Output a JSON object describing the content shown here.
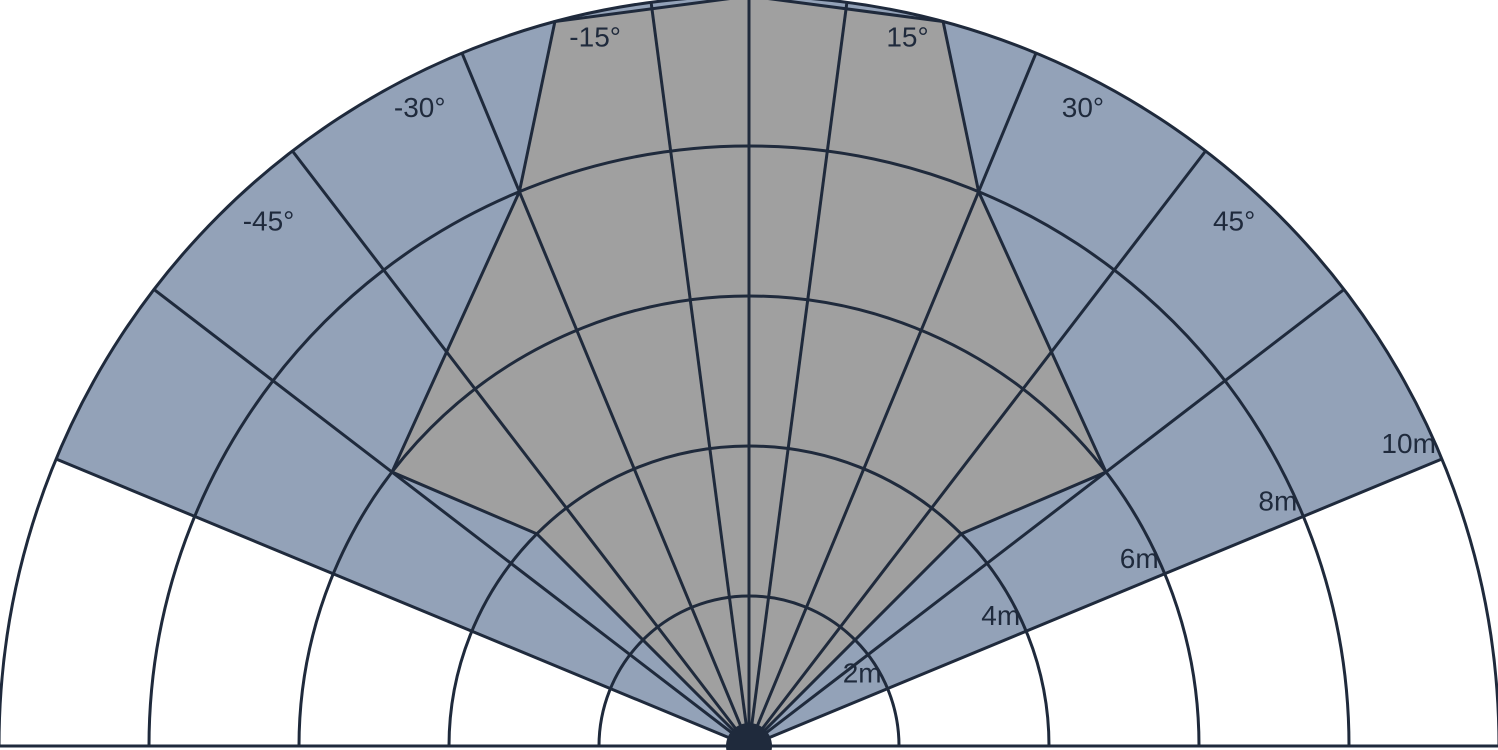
{
  "colors": {
    "background": "#ffffff",
    "coverage_fill": "#93a2b8",
    "detection_fill": "#a0a0a0",
    "line": "#1f2a3c",
    "label_text": "#1f2a3c"
  },
  "angle_labels": [
    "-45°",
    "-30°",
    "-15°",
    "15°",
    "30°",
    "45°"
  ],
  "distance_labels": [
    "2m",
    "4m",
    "6m",
    "8m",
    "10m"
  ],
  "diagram": {
    "ring_distances_m": [
      2,
      4,
      6,
      8,
      10
    ],
    "spoke_angles_deg": [
      -67.5,
      -52.5,
      -37.5,
      -22.5,
      -7.5,
      0,
      7.5,
      22.5,
      37.5,
      52.5,
      67.5
    ],
    "coverage_sector_deg": [
      -67.5,
      67.5
    ],
    "angle_label_deg": [
      -45,
      -30,
      -15,
      15,
      30,
      45
    ],
    "detection_region_m": [
      [
        0,
        0
      ],
      [
        4,
        -45
      ],
      [
        6,
        -52.5
      ],
      [
        8,
        -22.5
      ],
      [
        10,
        -15
      ],
      [
        10,
        0
      ],
      [
        10,
        15
      ],
      [
        8,
        22.5
      ],
      [
        6,
        52.5
      ],
      [
        4,
        45
      ],
      [
        0,
        0
      ]
    ]
  }
}
